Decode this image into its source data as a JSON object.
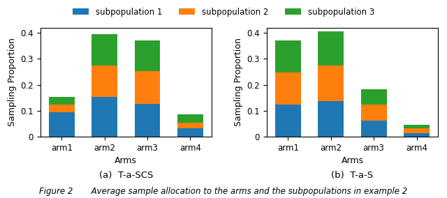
{
  "chart_data": [
    {
      "type": "bar",
      "stacked": true,
      "title": "(a)  T-a-SCS",
      "categories": [
        "arm1",
        "arm2",
        "arm3",
        "arm4"
      ],
      "series": [
        {
          "name": "subpopulation 1",
          "values": [
            0.093,
            0.152,
            0.125,
            0.033
          ]
        },
        {
          "name": "subpopulation 2",
          "values": [
            0.03,
            0.122,
            0.128,
            0.022
          ]
        },
        {
          "name": "subpopulation 3",
          "values": [
            0.03,
            0.122,
            0.118,
            0.03
          ]
        }
      ],
      "xlabel": "Arms",
      "ylabel": "Sampling Proportion",
      "ylim": [
        0,
        0.42
      ],
      "yticks": [
        0,
        0.1,
        0.2,
        0.3,
        0.4
      ],
      "legend": "upper center"
    },
    {
      "type": "bar",
      "stacked": true,
      "title": "(b)  T-a-S",
      "categories": [
        "arm1",
        "arm2",
        "arm3",
        "arm4"
      ],
      "series": [
        {
          "name": "subpopulation 1",
          "values": [
            0.123,
            0.138,
            0.062,
            0.013
          ]
        },
        {
          "name": "subpopulation 2",
          "values": [
            0.125,
            0.137,
            0.062,
            0.018
          ]
        },
        {
          "name": "subpopulation 3",
          "values": [
            0.122,
            0.132,
            0.058,
            0.015
          ]
        }
      ],
      "xlabel": "Arms",
      "ylabel": "Sampling Proportion",
      "ylim": [
        0,
        0.42
      ],
      "yticks": [
        0,
        0.1,
        0.2,
        0.3,
        0.4
      ],
      "legend": "upper center"
    }
  ],
  "caption": "Figure 2       Average sample allocation to the arms and the subpopulations in example 2"
}
